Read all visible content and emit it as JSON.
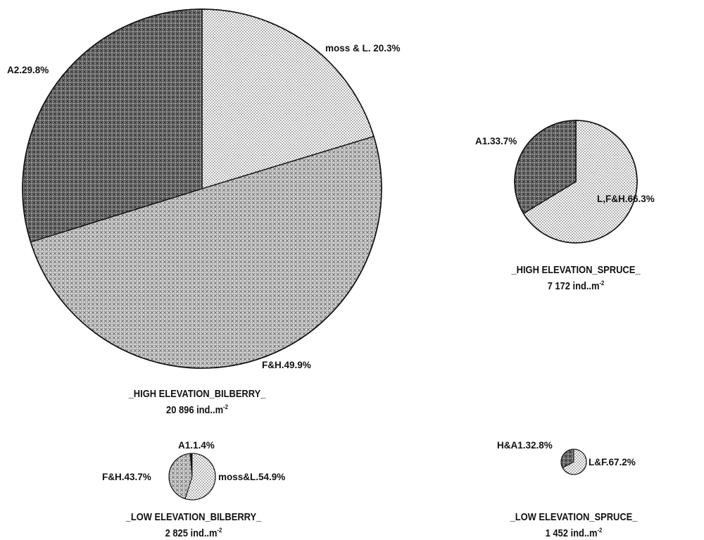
{
  "chart_data": [
    {
      "type": "pie",
      "caption": "_HIGH ELEVATION_BILBERRY_",
      "density_value": "20 896 ind..m",
      "density_exponent": "-2",
      "slices": [
        {
          "label": "moss & L. 20.3%",
          "value": 20.3
        },
        {
          "label": "F&H.49.9%",
          "value": 49.9
        },
        {
          "label": "A2.29.8%",
          "value": 29.8
        }
      ]
    },
    {
      "type": "pie",
      "caption": "_HIGH ELEVATION_SPRUCE_",
      "density_value": "7 172 ind..m",
      "density_exponent": "-2",
      "slices": [
        {
          "label": "L,F&H.66.3%",
          "value": 66.3
        },
        {
          "label": "A1.33.7%",
          "value": 33.7
        }
      ]
    },
    {
      "type": "pie",
      "caption": "_LOW ELEVATION_BILBERRY_",
      "density_value": "2 825 ind..m",
      "density_exponent": "-2",
      "slices": [
        {
          "label": "moss&L.54.9%",
          "value": 54.9
        },
        {
          "label": "F&H.43.7%",
          "value": 43.7
        },
        {
          "label": "A1.1.4%",
          "value": 1.4
        }
      ]
    },
    {
      "type": "pie",
      "caption": "_LOW ELEVATION_SPRUCE_",
      "density_value": "1 452 ind..m",
      "density_exponent": "-2",
      "slices": [
        {
          "label": "L&F.67.2%",
          "value": 67.2
        },
        {
          "label": "H&A1.32.8%",
          "value": 32.8
        }
      ]
    }
  ]
}
